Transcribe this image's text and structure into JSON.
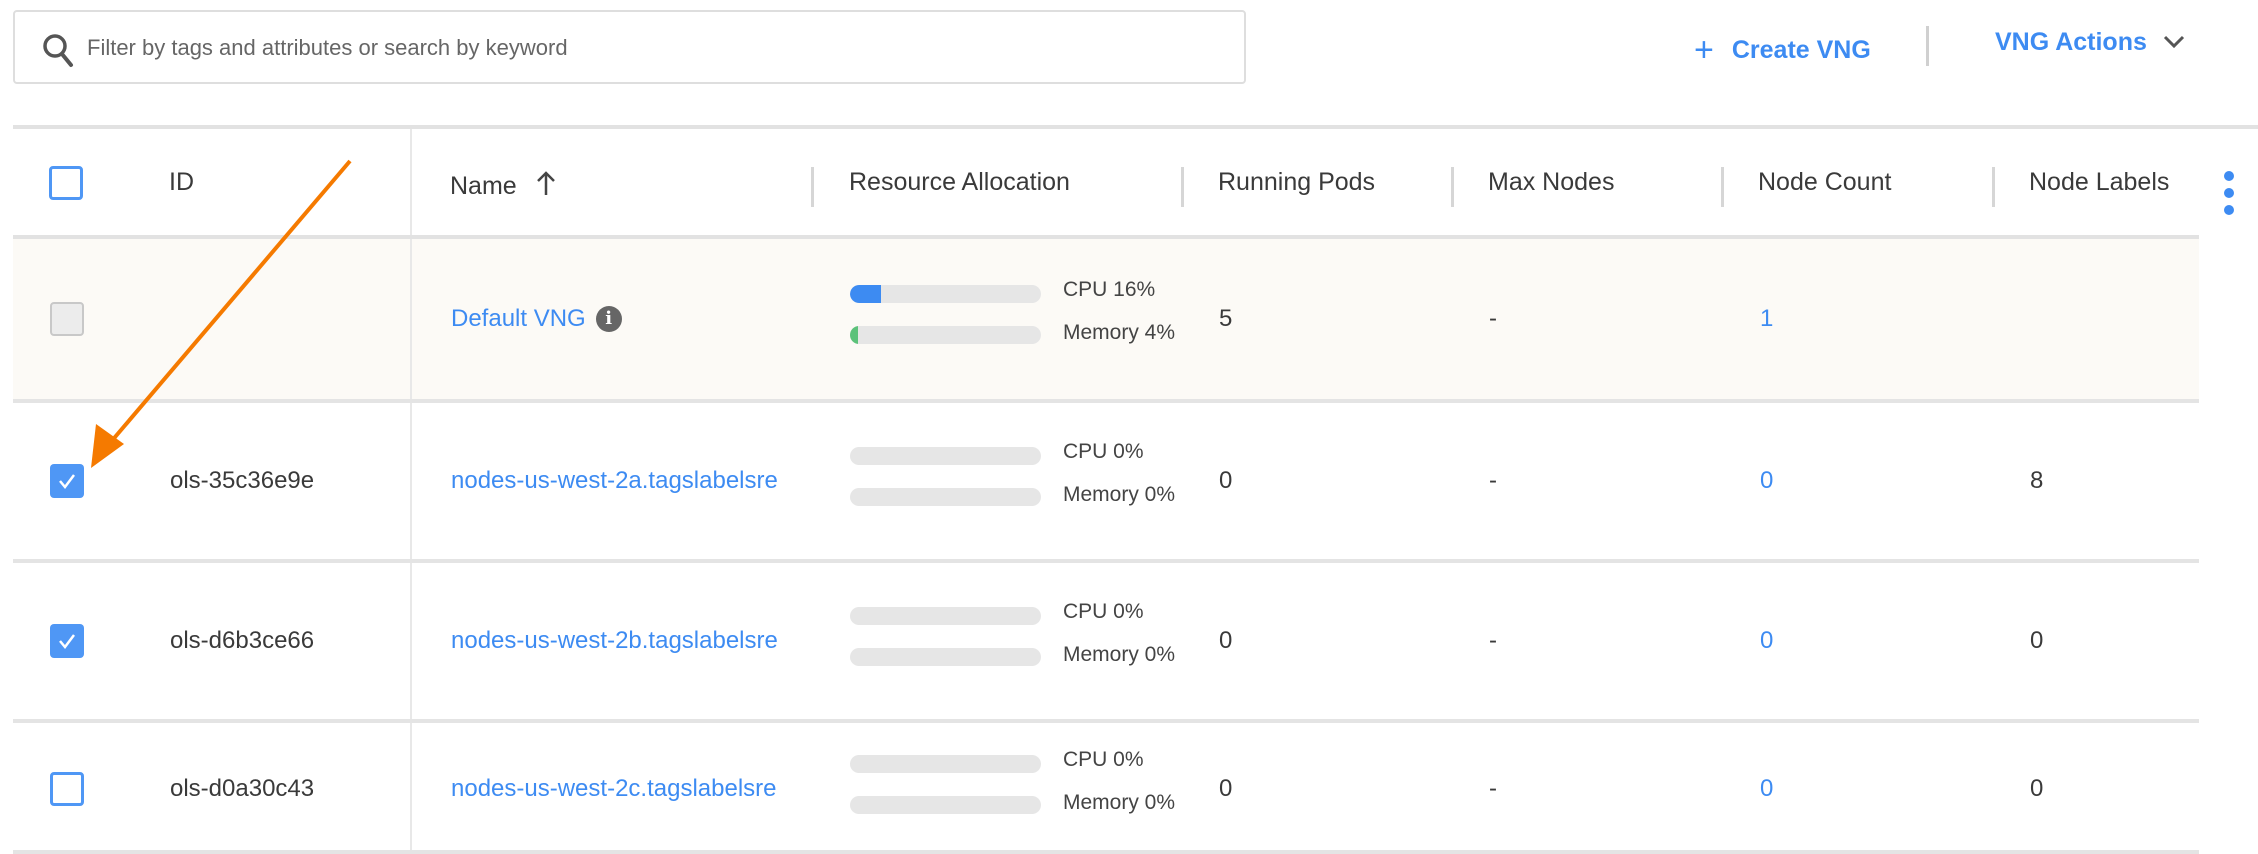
{
  "search": {
    "placeholder": "Filter by tags and attributes or search by keyword",
    "value": ""
  },
  "toolbar": {
    "create_label": "Create VNG",
    "actions_label": "VNG Actions"
  },
  "colors": {
    "accent": "#3d8bf2",
    "cpu_fill": "#3d8bf2",
    "memory_fill": "#5cc27a",
    "annotation_arrow": "#f57a00",
    "default_row_bg": "#fcfaf6"
  },
  "table": {
    "headers": {
      "id": "ID",
      "name": "Name",
      "resource": "Resource Allocation",
      "pods": "Running Pods",
      "max_nodes": "Max Nodes",
      "node_count": "Node Count",
      "node_labels": "Node Labels"
    },
    "sort": {
      "column": "Name",
      "direction": "ascending"
    },
    "rows": [
      {
        "state": "disabled",
        "id": "",
        "name": "Default VNG",
        "info_icon": true,
        "cpu_label": "CPU 16%",
        "cpu": 16,
        "mem_label": "Memory 4%",
        "mem": 4,
        "pods": "5",
        "max_nodes": "-",
        "node_count": "1",
        "node_labels": ""
      },
      {
        "state": "checked",
        "id": "ols-35c36e9e",
        "name": "nodes-us-west-2a.tagslabelsre",
        "cpu_label": "CPU 0%",
        "cpu": 0,
        "mem_label": "Memory 0%",
        "mem": 0,
        "pods": "0",
        "max_nodes": "-",
        "node_count": "0",
        "node_labels": "8"
      },
      {
        "state": "checked",
        "id": "ols-d6b3ce66",
        "name": "nodes-us-west-2b.tagslabelsre",
        "cpu_label": "CPU 0%",
        "cpu": 0,
        "mem_label": "Memory 0%",
        "mem": 0,
        "pods": "0",
        "max_nodes": "-",
        "node_count": "0",
        "node_labels": "0"
      },
      {
        "state": "unchecked",
        "id": "ols-d0a30c43",
        "name": "nodes-us-west-2c.tagslabelsre",
        "cpu_label": "CPU 0%",
        "cpu": 0,
        "mem_label": "Memory 0%",
        "mem": 0,
        "pods": "0",
        "max_nodes": "-",
        "node_count": "0",
        "node_labels": "0"
      }
    ]
  }
}
